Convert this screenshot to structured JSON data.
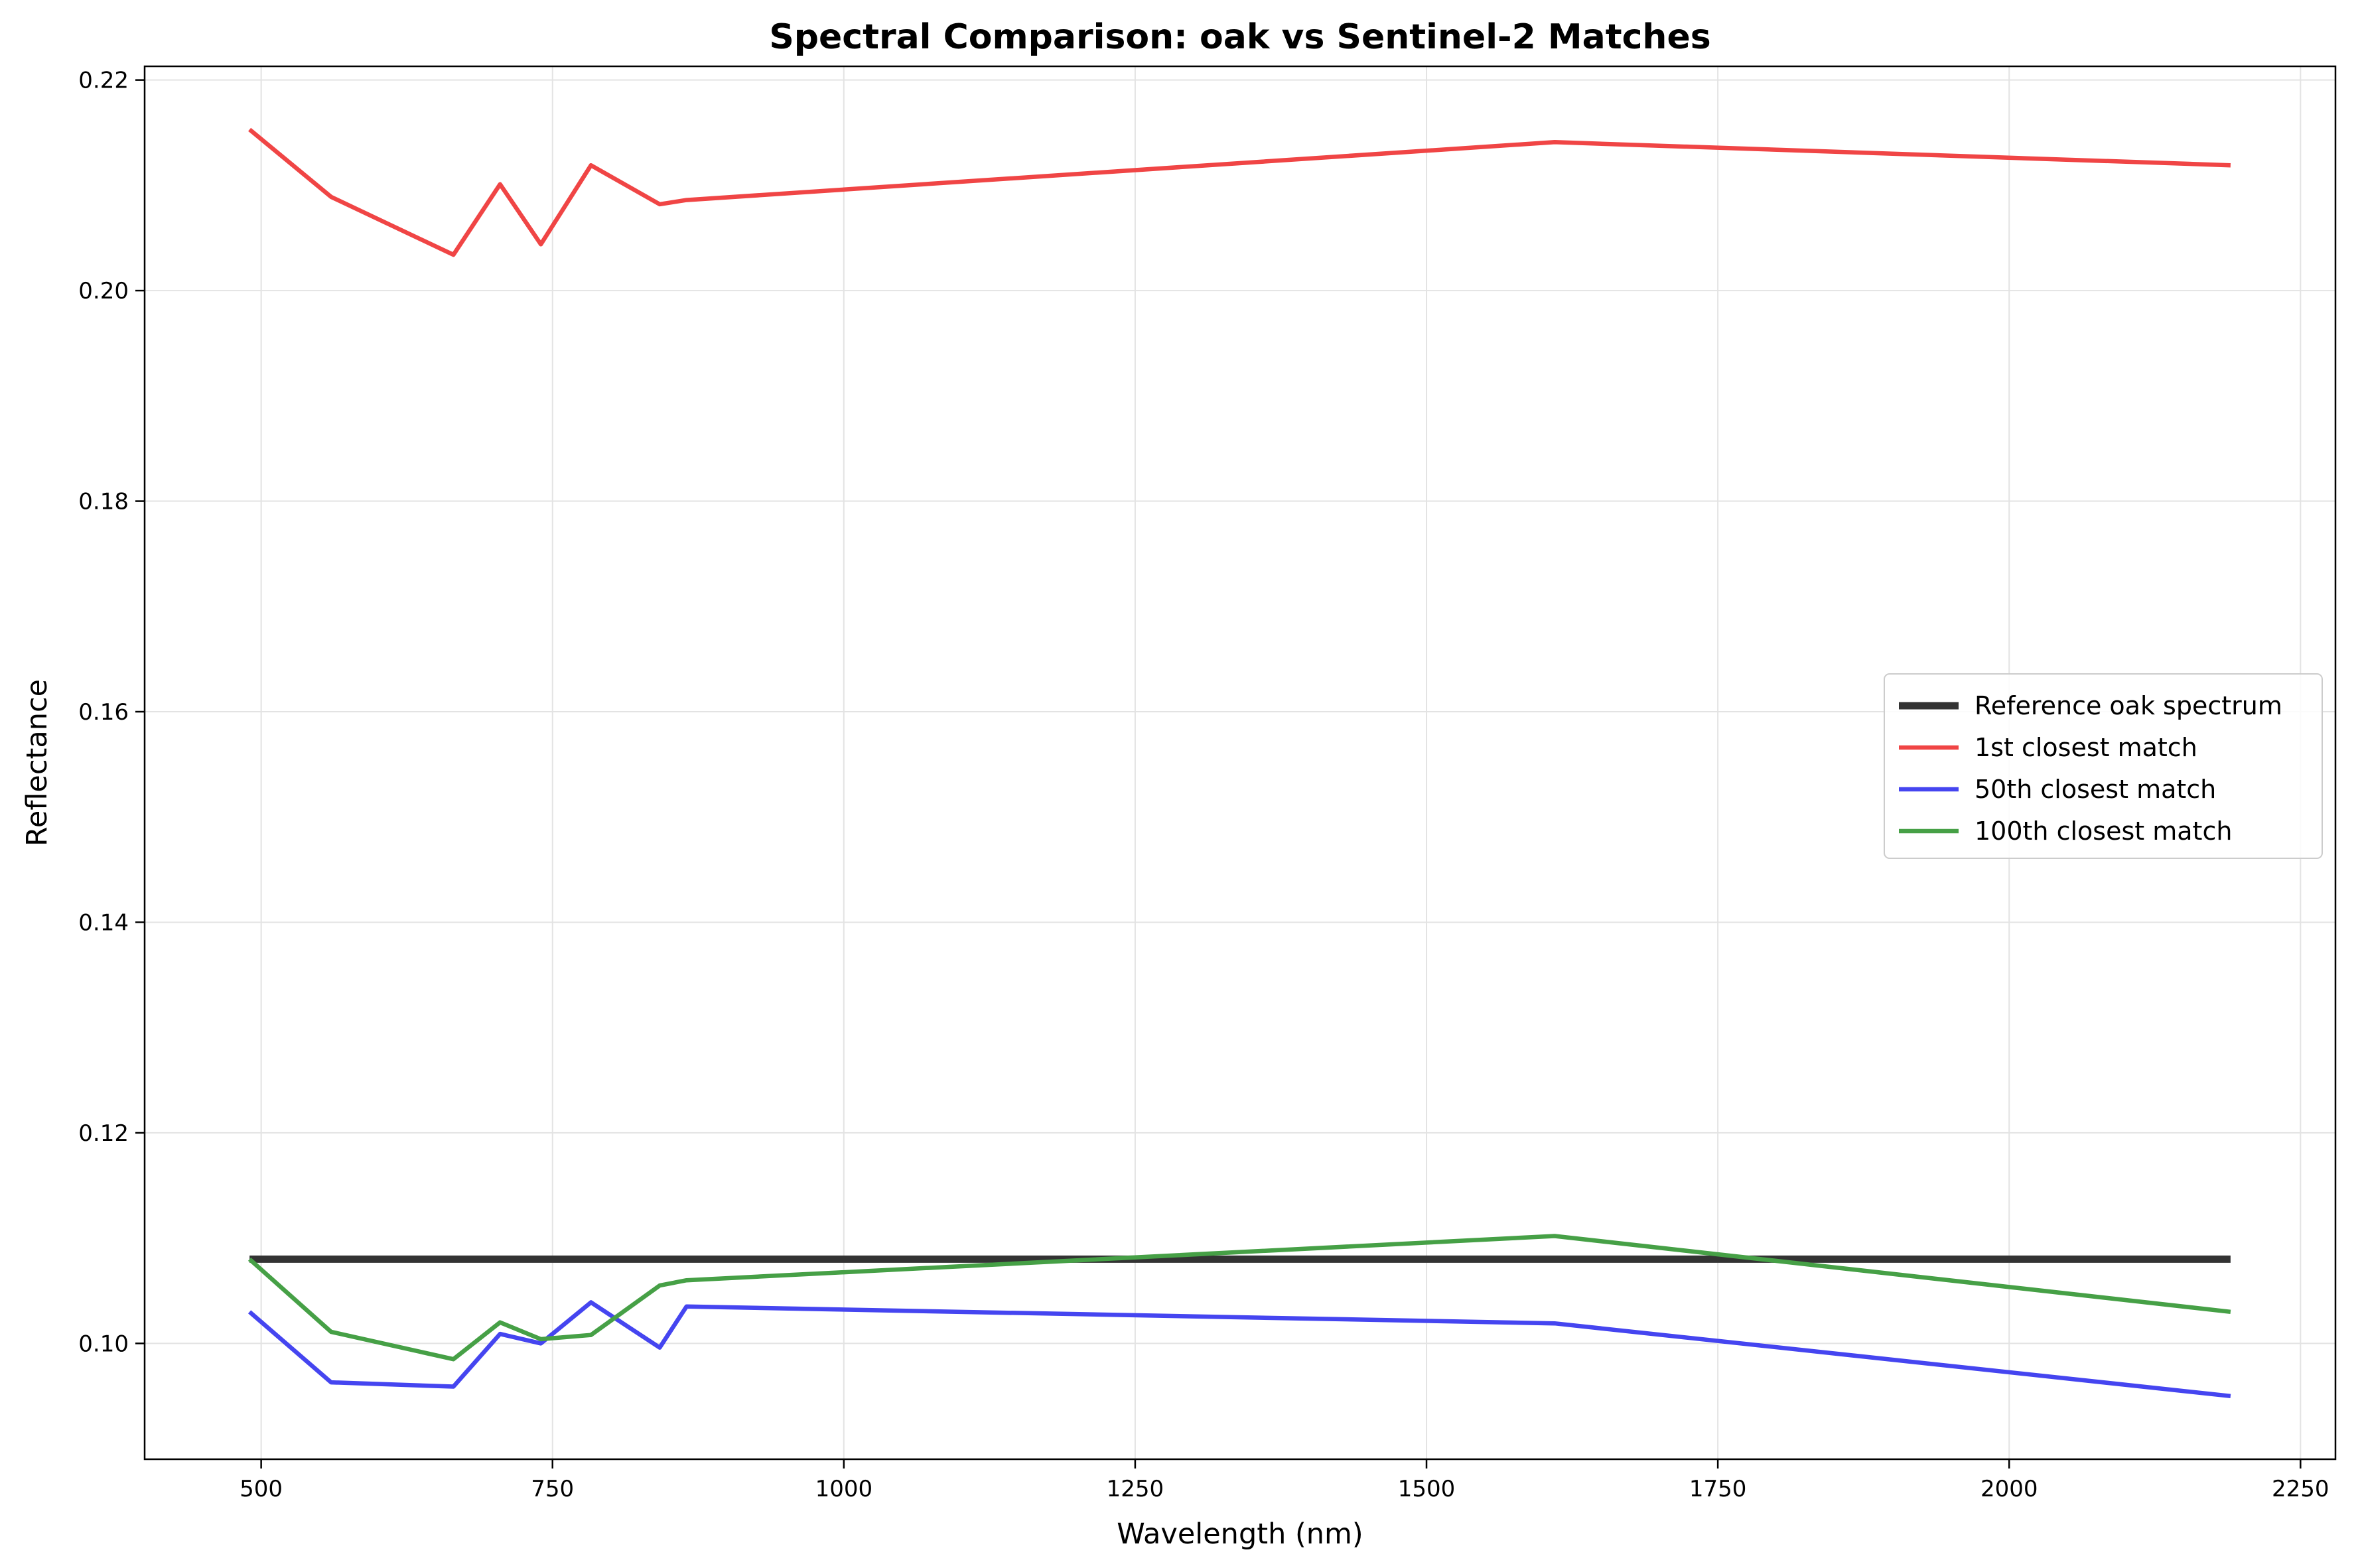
{
  "chart_data": {
    "type": "line",
    "title": "Spectral Comparison: oak vs Sentinel-2 Matches",
    "xlabel": "Wavelength (nm)",
    "ylabel": "Reflectance",
    "xlim": [
      400,
      2280
    ],
    "ylim": [
      0.089,
      0.2213
    ],
    "xticks": [
      500,
      750,
      1000,
      1250,
      1500,
      1750,
      2000,
      2250
    ],
    "xtick_labels": [
      "500",
      "750",
      "1000",
      "1250",
      "1500",
      "1750",
      "2000",
      "2250"
    ],
    "yticks": [
      0.1,
      0.12,
      0.14,
      0.16,
      0.18,
      0.2,
      0.22
    ],
    "ytick_labels": [
      "0.10",
      "0.12",
      "0.14",
      "0.16",
      "0.18",
      "0.20",
      "0.22"
    ],
    "grid": true,
    "legend_position": "center-right",
    "x": [
      490,
      560,
      665,
      705,
      740,
      783,
      842,
      865,
      1610,
      2190
    ],
    "series": [
      {
        "name": "Reference oak spectrum",
        "color": "#333333",
        "width": 11,
        "values": [
          0.108,
          0.108,
          0.108,
          0.108,
          0.108,
          0.108,
          0.108,
          0.108,
          0.108,
          0.108
        ]
      },
      {
        "name": "1st closest match",
        "color": "#f04545",
        "width": 6.5,
        "values": [
          0.2153,
          0.2089,
          0.2034,
          0.2101,
          0.2044,
          0.2119,
          0.2082,
          0.2086,
          0.2141,
          0.2119
        ]
      },
      {
        "name": "50th closest match",
        "color": "#4545f0",
        "width": 6.5,
        "values": [
          0.103,
          0.0963,
          0.0959,
          0.1009,
          0.1,
          0.1039,
          0.0996,
          0.1035,
          0.1019,
          0.095
        ]
      },
      {
        "name": "100th closest match",
        "color": "#46a046",
        "width": 6.5,
        "values": [
          0.108,
          0.1011,
          0.0985,
          0.102,
          0.1004,
          0.1008,
          0.1055,
          0.106,
          0.1102,
          0.103
        ]
      }
    ]
  }
}
